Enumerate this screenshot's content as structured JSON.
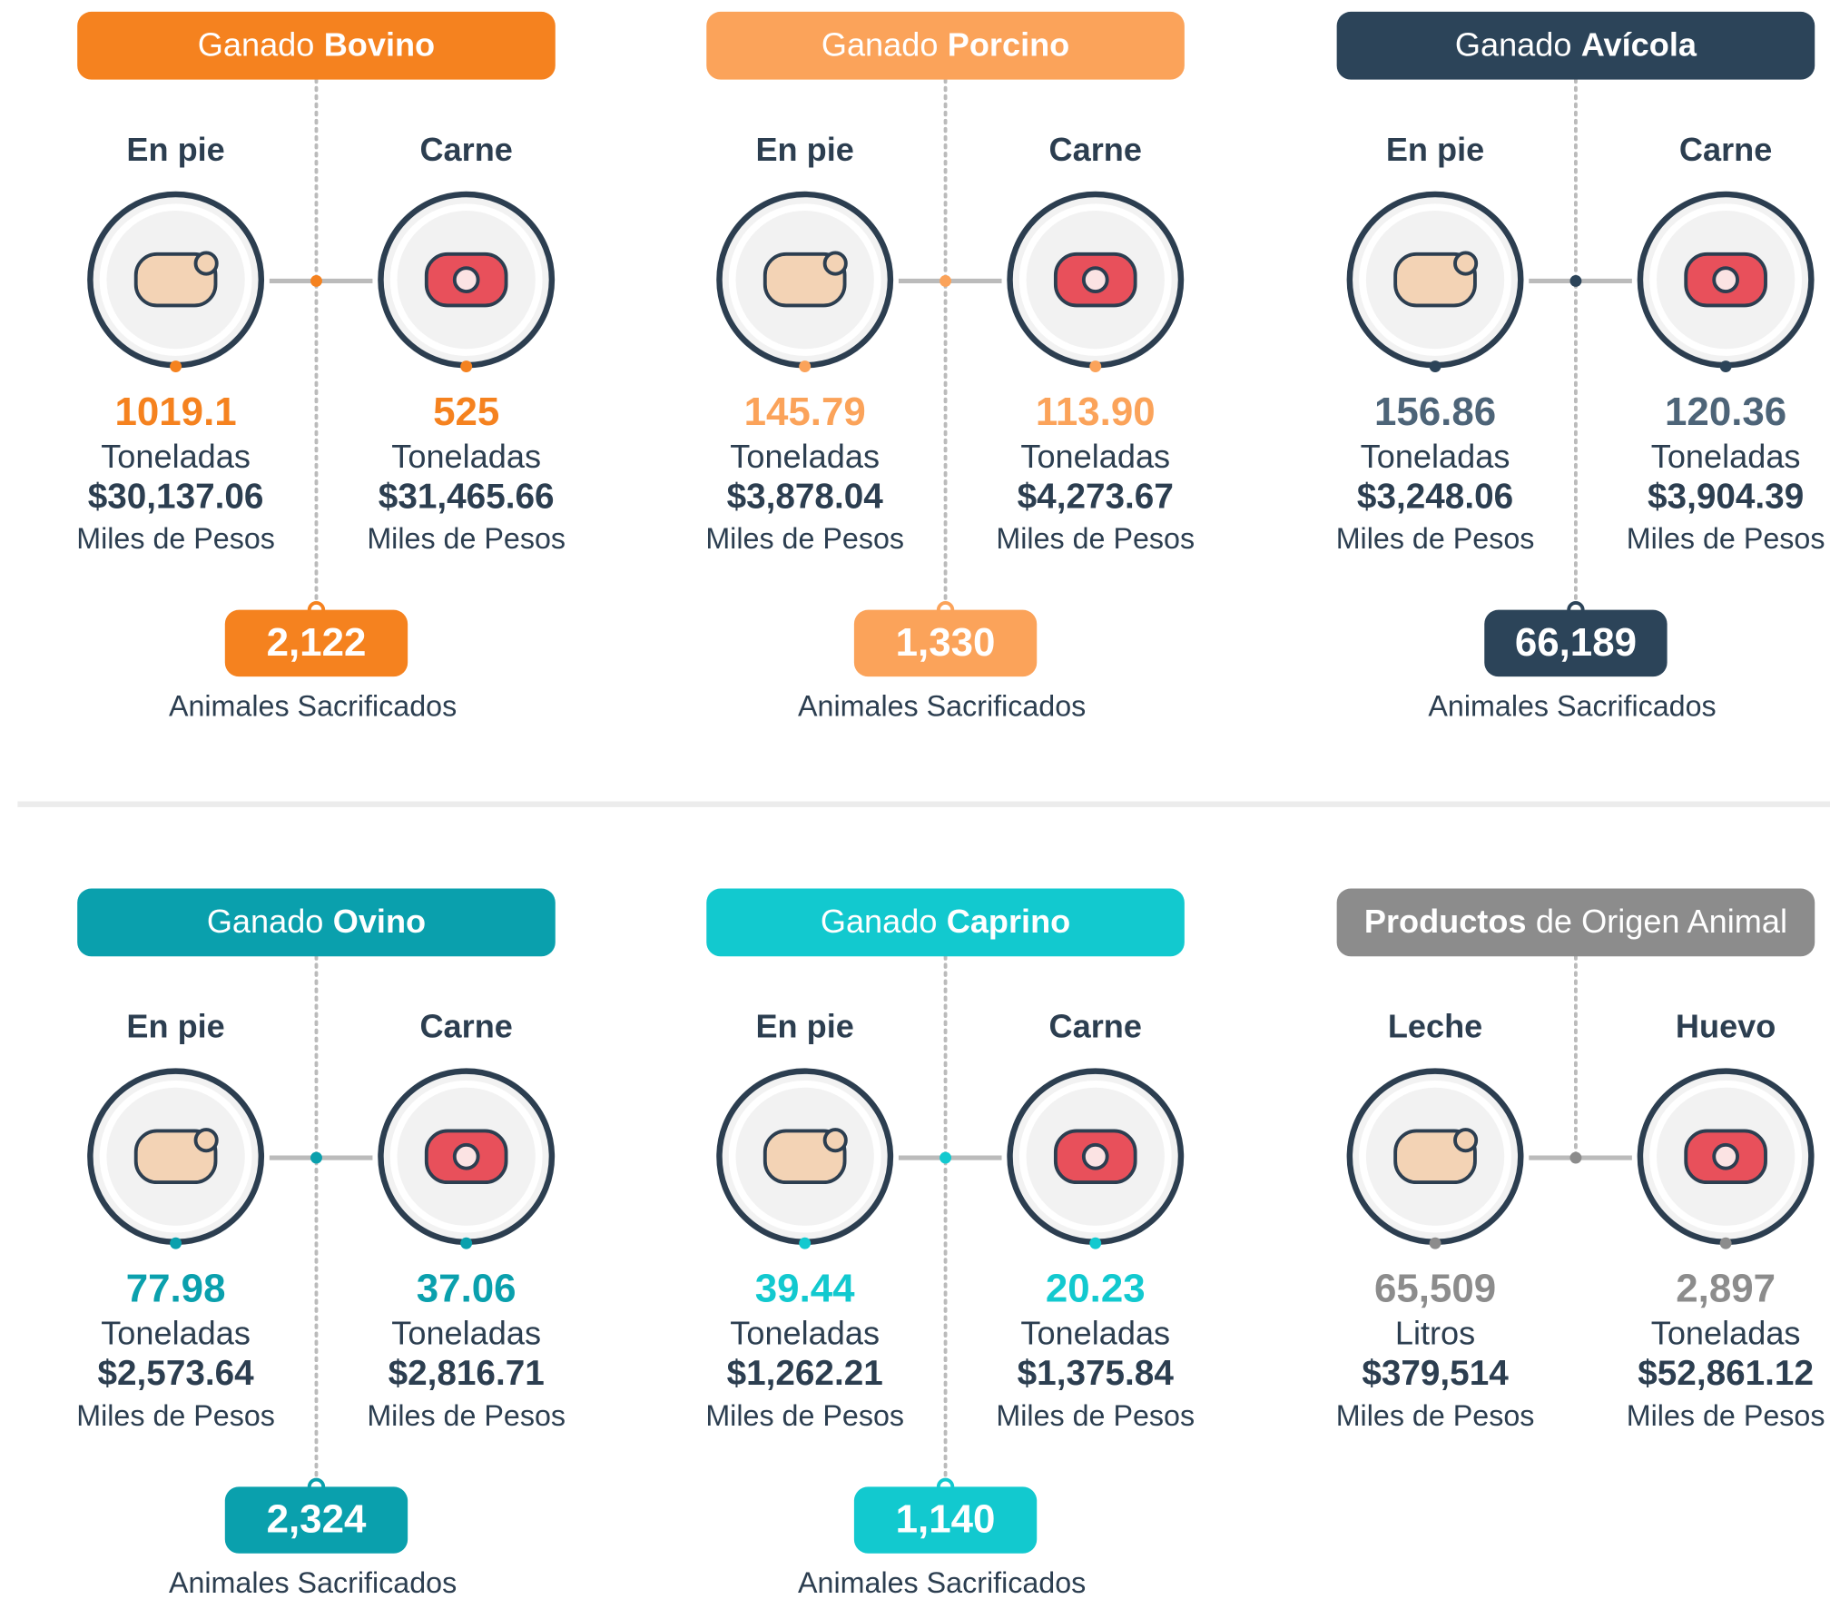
{
  "panels": [
    {
      "title": [
        {
          "text": "Ganado",
          "bold": false
        },
        {
          "text": "Bovino",
          "bold": true
        }
      ],
      "color": "#f5821f",
      "number_color": "#f5821f",
      "left": {
        "label": "En pie",
        "quantity": "1019.1",
        "unit": "Toneladas",
        "value": "$30,137.06",
        "value_unit": "Miles de Pesos"
      },
      "right": {
        "label": "Carne",
        "quantity": "525",
        "unit": "Toneladas",
        "value": "$31,465.66",
        "value_unit": "Miles de Pesos"
      },
      "slaughtered": "2,122",
      "slaughtered_label": "Animales Sacrificados"
    },
    {
      "title": [
        {
          "text": "Ganado",
          "bold": false
        },
        {
          "text": "Porcino",
          "bold": true
        }
      ],
      "color": "#fba35a",
      "number_color": "#fba35a",
      "left": {
        "label": "En pie",
        "quantity": "145.79",
        "unit": "Toneladas",
        "value": "$3,878.04",
        "value_unit": "Miles de Pesos"
      },
      "right": {
        "label": "Carne",
        "quantity": "113.90",
        "unit": "Toneladas",
        "value": "$4,273.67",
        "value_unit": "Miles de Pesos"
      },
      "slaughtered": "1,330",
      "slaughtered_label": "Animales Sacrificados"
    },
    {
      "title": [
        {
          "text": "Ganado",
          "bold": false
        },
        {
          "text": "Avícola",
          "bold": true
        }
      ],
      "color": "#2c4459",
      "number_color": "#4d6478",
      "left": {
        "label": "En pie",
        "quantity": "156.86",
        "unit": "Toneladas",
        "value": "$3,248.06",
        "value_unit": "Miles de Pesos"
      },
      "right": {
        "label": "Carne",
        "quantity": "120.36",
        "unit": "Toneladas",
        "value": "$3,904.39",
        "value_unit": "Miles de Pesos"
      },
      "slaughtered": "66,189",
      "slaughtered_label": "Animales Sacrificados"
    },
    {
      "title": [
        {
          "text": "Ganado",
          "bold": false
        },
        {
          "text": "Ovino",
          "bold": true
        }
      ],
      "color": "#0aa0ad",
      "number_color": "#0aa0ad",
      "left": {
        "label": "En pie",
        "quantity": "77.98",
        "unit": "Toneladas",
        "value": "$2,573.64",
        "value_unit": "Miles de Pesos"
      },
      "right": {
        "label": "Carne",
        "quantity": "37.06",
        "unit": "Toneladas",
        "value": "$2,816.71",
        "value_unit": "Miles de Pesos"
      },
      "slaughtered": "2,324",
      "slaughtered_label": "Animales Sacrificados"
    },
    {
      "title": [
        {
          "text": "Ganado",
          "bold": false
        },
        {
          "text": "Caprino",
          "bold": true
        }
      ],
      "color": "#12c9cf",
      "number_color": "#12c9cf",
      "left": {
        "label": "En pie",
        "quantity": "39.44",
        "unit": "Toneladas",
        "value": "$1,262.21",
        "value_unit": "Miles de Pesos"
      },
      "right": {
        "label": "Carne",
        "quantity": "20.23",
        "unit": "Toneladas",
        "value": "$1,375.84",
        "value_unit": "Miles de Pesos"
      },
      "slaughtered": "1,140",
      "slaughtered_label": "Animales Sacrificados"
    },
    {
      "title": [
        {
          "text": "Productos",
          "bold": true
        },
        {
          "text": "de Origen Animal",
          "bold": false
        }
      ],
      "color": "#8c8c8c",
      "number_color": "#8c8c8c",
      "left": {
        "label": "Leche",
        "quantity": "65,509",
        "unit": "Litros",
        "value": "$379,514",
        "value_unit": "Miles de Pesos"
      },
      "right": {
        "label": "Huevo",
        "quantity": "2,897",
        "unit": "Toneladas",
        "value": "$52,861.12",
        "value_unit": "Miles de Pesos"
      }
    }
  ]
}
